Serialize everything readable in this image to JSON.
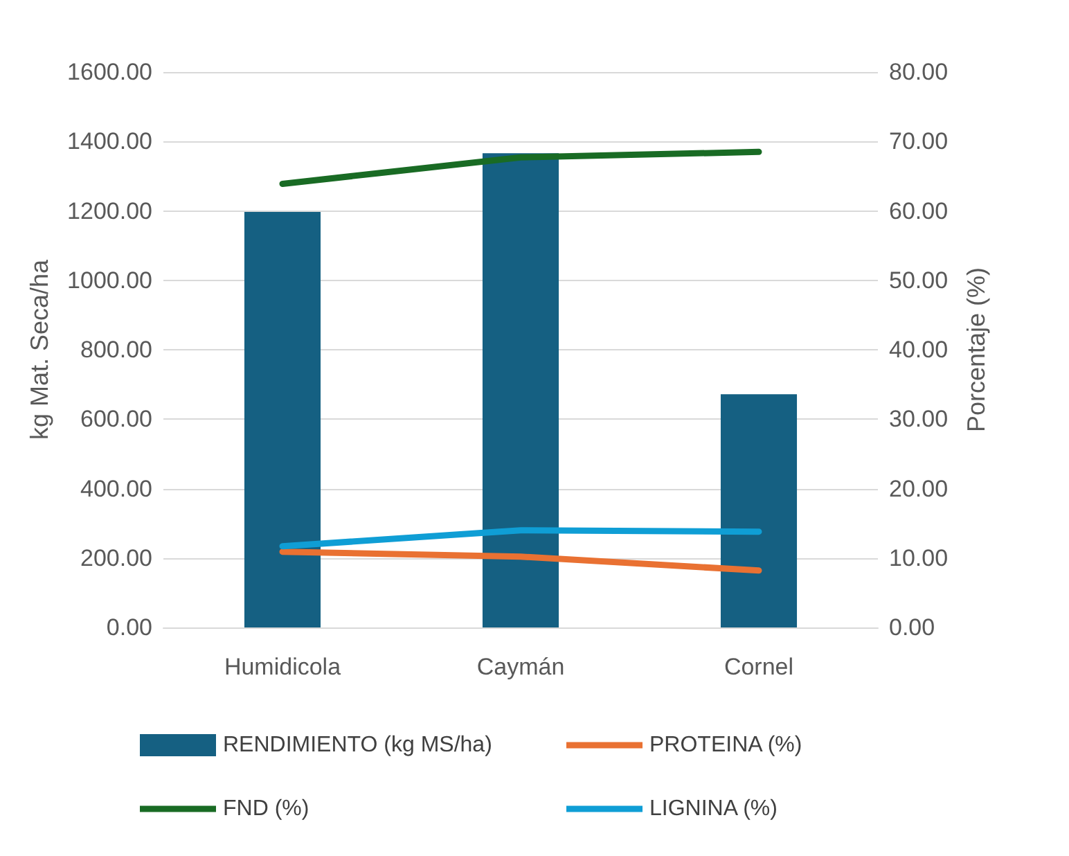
{
  "chart_data": {
    "type": "bar",
    "ylabel": "kg Mat. Seca/ha",
    "y2label": "Porcentaje (%)",
    "categories": [
      "Humidicola",
      "Caymán",
      "Cornel"
    ],
    "series": [
      {
        "name": "RENDIMIENTO (kg MS/ha)",
        "color": "#156082",
        "values": [
          1197,
          1366,
          672
        ]
      },
      {
        "name": "PROTEINA (%)",
        "type": "line",
        "axis": "y2",
        "color": "#e97132",
        "values": [
          10.9,
          10.2,
          8.2
        ]
      },
      {
        "name": "FND (%)",
        "type": "line",
        "axis": "y2",
        "color": "#196b24",
        "values": [
          63.9,
          67.7,
          68.5
        ]
      },
      {
        "name": "LIGNINA (%)",
        "type": "line",
        "axis": "y2",
        "color": "#0f9ed5",
        "values": [
          11.7,
          14.0,
          13.8
        ]
      }
    ],
    "ylim": [
      0,
      1600
    ],
    "yticks": [
      {
        "value": 0,
        "label": "0.00"
      },
      {
        "value": 200,
        "label": "200.00"
      },
      {
        "value": 400,
        "label": "400.00"
      },
      {
        "value": 600,
        "label": "600.00"
      },
      {
        "value": 800,
        "label": "800.00"
      },
      {
        "value": 1000,
        "label": "1000.00"
      },
      {
        "value": 1200,
        "label": "1200.00"
      },
      {
        "value": 1400,
        "label": "1400.00"
      },
      {
        "value": 1600,
        "label": "1600.00"
      }
    ],
    "y2lim": [
      0,
      80
    ],
    "y2ticks": [
      {
        "value": 0,
        "label": "0.00"
      },
      {
        "value": 10,
        "label": "10.00"
      },
      {
        "value": 20,
        "label": "20.00"
      },
      {
        "value": 30,
        "label": "30.00"
      },
      {
        "value": 40,
        "label": "40.00"
      },
      {
        "value": 50,
        "label": "50.00"
      },
      {
        "value": 60,
        "label": "60.00"
      },
      {
        "value": 70,
        "label": "70.00"
      },
      {
        "value": 80,
        "label": "80.00"
      }
    ],
    "grid": "y",
    "legend": "bottom",
    "marker": "none",
    "line_style": "solid"
  }
}
